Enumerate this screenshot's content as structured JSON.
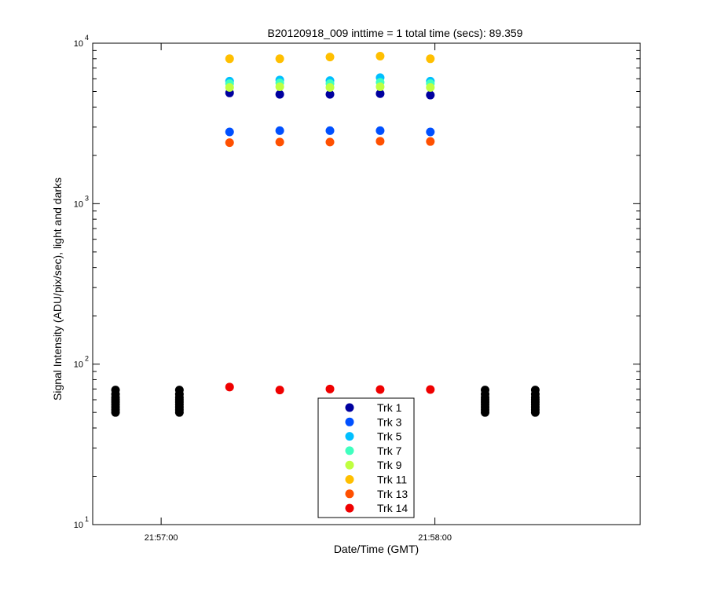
{
  "chart_data": {
    "type": "scatter",
    "title": "B20120918_009 inttime = 1 total time (secs): 89.359",
    "xlabel": "Date/Time (GMT)",
    "ylabel": "Signal Intensity (ADU/pix/sec), light and darks",
    "yscale": "log",
    "ylim": [
      10,
      10000
    ],
    "xlim": [
      "21:56:45",
      "21:58:45"
    ],
    "xticks": [
      {
        "t": "21:57:00",
        "label": "21:57:00"
      },
      {
        "t": "21:58:00",
        "label": "21:58:00"
      }
    ],
    "yticks": [
      {
        "value": 10,
        "base": "10",
        "exp": "1"
      },
      {
        "value": 100,
        "base": "10",
        "exp": "2"
      },
      {
        "value": 1000,
        "base": "10",
        "exp": "3"
      },
      {
        "value": 10000,
        "base": "10",
        "exp": "4"
      }
    ],
    "grid": false,
    "legend_position": "bottom-center",
    "light_times": [
      "21:57:15",
      "21:57:26",
      "21:57:37",
      "21:57:48",
      "21:57:59"
    ],
    "series": [
      {
        "name": "Trk 1",
        "color": "#00009f",
        "values": [
          4900,
          4800,
          4800,
          4850,
          4750
        ]
      },
      {
        "name": "Trk 3",
        "color": "#0050ff",
        "values": [
          2800,
          2850,
          2850,
          2850,
          2800
        ]
      },
      {
        "name": "Trk 5",
        "color": "#00bfff",
        "values": [
          5800,
          5900,
          5850,
          6100,
          5800
        ]
      },
      {
        "name": "Trk 7",
        "color": "#40ffbf",
        "values": [
          5600,
          5650,
          5600,
          5700,
          5600
        ]
      },
      {
        "name": "Trk 9",
        "color": "#bfff40",
        "values": [
          5300,
          5350,
          5300,
          5350,
          5300
        ]
      },
      {
        "name": "Trk 11",
        "color": "#ffbf00",
        "values": [
          8000,
          8000,
          8200,
          8300,
          8000
        ]
      },
      {
        "name": "Trk 13",
        "color": "#ff5000",
        "values": [
          2400,
          2420,
          2420,
          2450,
          2440
        ]
      },
      {
        "name": "Trk 14",
        "color": "#ef0000",
        "values": [
          72,
          69,
          70,
          69.5,
          69.5
        ]
      }
    ],
    "darks": {
      "color": "#000000",
      "times": [
        "21:56:50",
        "21:57:04",
        "21:58:11",
        "21:58:22"
      ],
      "values": [
        50,
        52,
        54,
        56,
        58,
        60,
        62,
        65,
        69
      ]
    }
  }
}
